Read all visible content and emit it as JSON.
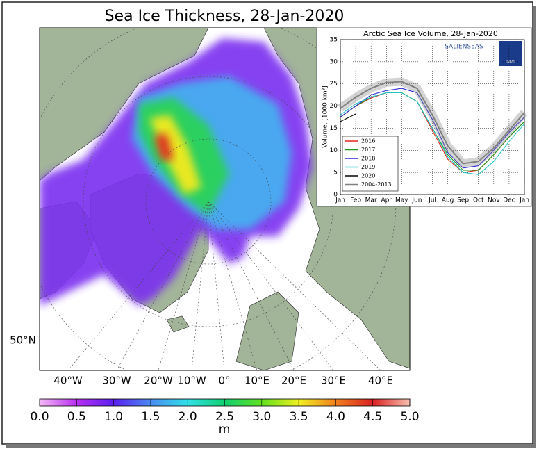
{
  "map": {
    "title": "Sea Ice Thickness, 28-Jan-2020",
    "longitude_labels": [
      "40°W",
      "30°W",
      "20°W",
      "10°W",
      "0°",
      "10°E",
      "20°E",
      "30°E",
      "40°E"
    ],
    "latitude_label": "50°N",
    "colorbar": {
      "label": "m",
      "clim": [
        0,
        5
      ],
      "ticks": [
        {
          "value": 0,
          "label": "0.0"
        },
        {
          "value": 0.5,
          "label": "0.5"
        },
        {
          "value": 1,
          "label": "1.0"
        },
        {
          "value": 1.5,
          "label": "1.5"
        },
        {
          "value": 2,
          "label": "2.0"
        },
        {
          "value": 2.5,
          "label": "2.5"
        },
        {
          "value": 3,
          "label": "3.0"
        },
        {
          "value": 3.5,
          "label": "3.5"
        },
        {
          "value": 4,
          "label": "4.0"
        },
        {
          "value": 4.5,
          "label": "4.5"
        },
        {
          "value": 5,
          "label": "5.0"
        }
      ]
    }
  },
  "chart_data": {
    "type": "line",
    "title": "Arctic Sea Ice Volume, 28-Jan-2020",
    "y_label": "Volume, [1000 km³]",
    "logo_text": "SALIENSEAS",
    "logo_badge": "DMI",
    "categories": [
      "Jan",
      "Feb",
      "Mar",
      "Apr",
      "May",
      "Jun",
      "Jul",
      "Aug",
      "Sep",
      "Oct",
      "Nov",
      "Dec",
      "Jan"
    ],
    "ylim": [
      0,
      35
    ],
    "yticks": [
      0,
      5,
      10,
      15,
      20,
      25,
      30,
      35
    ],
    "grid": true,
    "legend": "lower left",
    "series": [
      {
        "name": "2016",
        "color": "#e8251e",
        "values": [
          17.5,
          20,
          21.8,
          23,
          23,
          21,
          14.5,
          8,
          5,
          5.5,
          9,
          13,
          16.5
        ]
      },
      {
        "name": "2017",
        "color": "#1e9a1e",
        "values": [
          17.5,
          20,
          22,
          23,
          23,
          21,
          15,
          9,
          5.5,
          5.5,
          9,
          13,
          16.5
        ]
      },
      {
        "name": "2018",
        "color": "#2b2bd6",
        "values": [
          17.5,
          20,
          22.5,
          23.5,
          24,
          23,
          17,
          9.5,
          6,
          6.5,
          10,
          14,
          17.5
        ]
      },
      {
        "name": "2019",
        "color": "#22c4c4",
        "values": [
          18,
          20.5,
          22,
          23,
          23,
          21,
          15,
          8.5,
          5,
          4.5,
          7.5,
          12,
          16
        ]
      },
      {
        "name": "2020",
        "color": "#000000",
        "values": [
          16.5,
          18.2,
          null,
          null,
          null,
          null,
          null,
          null,
          null,
          null,
          null,
          null,
          null
        ]
      },
      {
        "name": "2004-2013",
        "color": "#808080",
        "values": [
          19.5,
          22,
          24,
          25.3,
          25.5,
          24,
          18,
          11,
          7,
          7.5,
          10.5,
          14.5,
          18.5
        ]
      }
    ]
  }
}
